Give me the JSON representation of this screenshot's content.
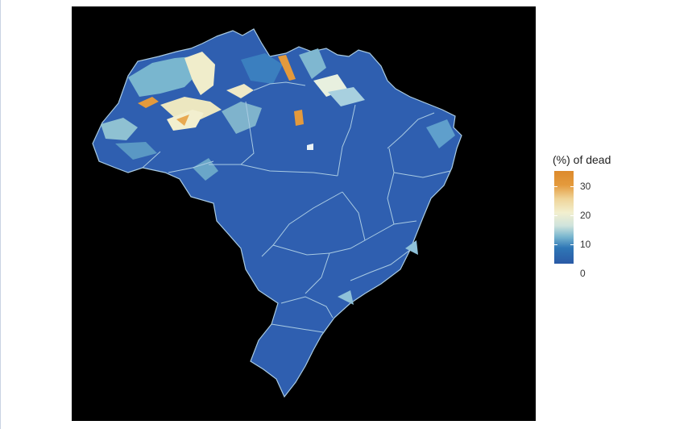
{
  "legend": {
    "title": "(%) of dead",
    "ticks": [
      "30",
      "20",
      "10",
      "0"
    ]
  },
  "colors": {
    "background": "#000000",
    "low": "#2a5aa6",
    "mid": "#f2efcf",
    "high": "#e49a3c",
    "borders": "#a9cbe3"
  }
}
